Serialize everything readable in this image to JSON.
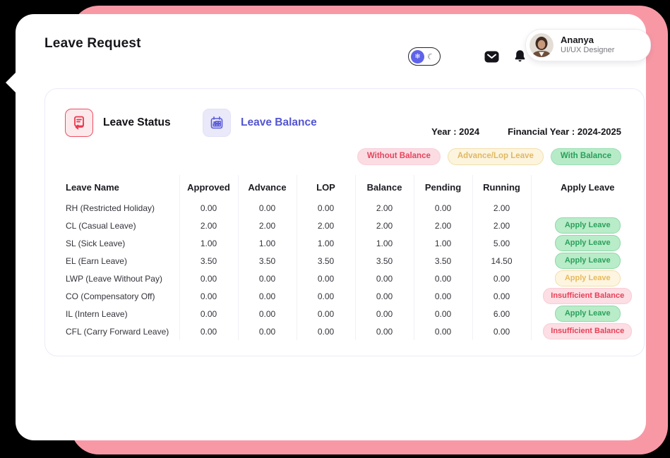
{
  "page_title": "Leave Request",
  "header": {
    "theme_toggle": {
      "light_icon": "❄",
      "dark_icon": "☾"
    },
    "user": {
      "name": "Ananya",
      "role": "UI/UX Designer"
    }
  },
  "tabs": [
    {
      "label": "Leave Status",
      "icon": "document-return-icon",
      "active": true
    },
    {
      "label": "Leave Balance",
      "icon": "calendar-icon",
      "active": false
    }
  ],
  "filters": {
    "year": "Year : 2024",
    "financial_year": "Financial Year : 2024-2025"
  },
  "legend": [
    {
      "label": "Without Balance",
      "style": "danger"
    },
    {
      "label": "Advance/Lop Leave",
      "style": "warning"
    },
    {
      "label": "With Balance",
      "style": "success"
    }
  ],
  "table": {
    "headers": [
      "Leave Name",
      "Approved",
      "Advance",
      "LOP",
      "Balance",
      "Pending",
      "Running",
      "Apply Leave"
    ],
    "rows": [
      {
        "name": "RH (Restricted Holiday)",
        "values": [
          "0.00",
          "0.00",
          "0.00",
          "2.00",
          "0.00",
          "2.00"
        ],
        "action": null
      },
      {
        "name": "CL (Casual Leave)",
        "values": [
          "2.00",
          "2.00",
          "2.00",
          "2.00",
          "2.00",
          "2.00"
        ],
        "action": {
          "label": "Apply Leave",
          "style": "success"
        }
      },
      {
        "name": "SL (Sick Leave)",
        "values": [
          "1.00",
          "1.00",
          "1.00",
          "1.00",
          "1.00",
          "5.00"
        ],
        "action": {
          "label": "Apply Leave",
          "style": "success"
        }
      },
      {
        "name": "EL (Earn Leave)",
        "values": [
          "3.50",
          "3.50",
          "3.50",
          "3.50",
          "3.50",
          "14.50"
        ],
        "action": {
          "label": "Apply Leave",
          "style": "success"
        }
      },
      {
        "name": "LWP (Leave Without Pay)",
        "values": [
          "0.00",
          "0.00",
          "0.00",
          "0.00",
          "0.00",
          "0.00"
        ],
        "action": {
          "label": "Apply Leave",
          "style": "warning"
        }
      },
      {
        "name": "CO (Compensatory Off)",
        "values": [
          "0.00",
          "0.00",
          "0.00",
          "0.00",
          "0.00",
          "0.00"
        ],
        "action": {
          "label": "Insufficient Balance",
          "style": "danger"
        }
      },
      {
        "name": "IL (Intern Leave)",
        "values": [
          "0.00",
          "0.00",
          "0.00",
          "0.00",
          "0.00",
          "6.00"
        ],
        "action": {
          "label": "Apply Leave",
          "style": "success"
        }
      },
      {
        "name": "CFL (Carry Forward Leave)",
        "values": [
          "0.00",
          "0.00",
          "0.00",
          "0.00",
          "0.00",
          "0.00"
        ],
        "action": {
          "label": "Insufficient Balance",
          "style": "danger"
        }
      }
    ]
  },
  "colors": {
    "backdrop_pink": "#F998A5",
    "accent_red": "#E8384F",
    "accent_indigo": "#5355D1",
    "success_bg": "#B9ECC8",
    "success_text": "#2BA15D",
    "warning_bg": "#FDF5E0",
    "warning_text": "#E6BA5C",
    "danger_bg": "#FCDEE4",
    "danger_text": "#E74056"
  }
}
